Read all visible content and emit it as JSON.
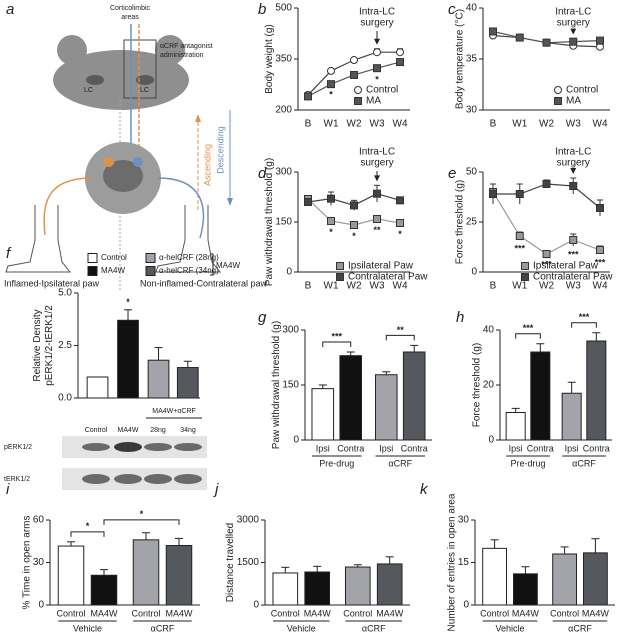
{
  "panel_a": {
    "letter": "a",
    "corticolimbic": [
      "Corticolimbic",
      "areas"
    ],
    "antagonist": [
      "αCRF antagonist",
      "administration"
    ],
    "lc_left": "LC",
    "lc_right": "LC",
    "ascending": "Ascending",
    "descending": "Descending",
    "ipsi_paw": "Inflamed-Ipsilateral paw",
    "contra_paw": "Non-inflamed-Contralateral paw"
  },
  "panel_f_blot": {
    "group_label": "MA4W+αCRF",
    "lane_labels": [
      "Control",
      "MA4W",
      "28ng",
      "34ng"
    ],
    "rows": [
      "pERK1/2",
      "tERK1/2"
    ]
  },
  "chart_data": [
    {
      "type": "line",
      "letter": "b",
      "ylabel": "Body weight (g)",
      "categories": [
        "B",
        "W1",
        "W2",
        "W3",
        "W4"
      ],
      "ylim": [
        200,
        500
      ],
      "yticks": [
        200,
        350,
        500
      ],
      "annotation": [
        "Intra-LC",
        "surgery"
      ],
      "legend": "lower right",
      "series": [
        {
          "name": "Control",
          "color": "#ffffff",
          "marker": "circle",
          "values": [
            244,
            315,
            347,
            370,
            370
          ],
          "errors": [
            8,
            6,
            6,
            10,
            10
          ]
        },
        {
          "name": "MA",
          "color": "#555555",
          "marker": "square",
          "values": [
            240,
            276,
            303,
            323,
            341
          ],
          "errors": [
            8,
            6,
            6,
            8,
            6
          ],
          "annotations": [
            null,
            "*",
            null,
            "*",
            null
          ]
        }
      ]
    },
    {
      "type": "line",
      "letter": "c",
      "ylabel": "Body temperature (°C)",
      "categories": [
        "B",
        "W1",
        "W2",
        "W3",
        "W4"
      ],
      "ylim": [
        30,
        40
      ],
      "yticks": [
        30,
        35,
        40
      ],
      "annotation": [
        "Intra-LC",
        "surgery"
      ],
      "legend": "lower right",
      "series": [
        {
          "name": "Control",
          "color": "#ffffff",
          "marker": "circle",
          "values": [
            37.3,
            37.1,
            36.6,
            36.3,
            36.2
          ],
          "errors": [
            0.2,
            0.2,
            0.2,
            0.3,
            0.2
          ]
        },
        {
          "name": "MA",
          "color": "#555555",
          "marker": "square",
          "values": [
            37.7,
            37.1,
            36.6,
            36.7,
            36.8
          ],
          "errors": [
            0.2,
            0.2,
            0.2,
            0.3,
            0.3
          ]
        }
      ]
    },
    {
      "type": "line",
      "letter": "d",
      "ylabel": "Paw withdrawal threshold (g)",
      "categories": [
        "B",
        "W1",
        "W2",
        "W3",
        "W4"
      ],
      "ylim": [
        0,
        300
      ],
      "yticks": [
        0,
        150,
        300
      ],
      "annotation": [
        "Intra-LC",
        "surgery"
      ],
      "legend": "bottom",
      "series": [
        {
          "name": "Ipsilateral Paw",
          "color": "#999999",
          "marker": "square",
          "values": [
            219,
            153,
            141,
            159,
            147
          ],
          "errors": [
            10,
            8,
            8,
            8,
            8
          ],
          "annotations": [
            null,
            "*",
            "*",
            "**",
            "*"
          ]
        },
        {
          "name": "Contralateral Paw",
          "color": "#444444",
          "marker": "square",
          "values": [
            210,
            220,
            200,
            235,
            215
          ],
          "errors": [
            10,
            20,
            15,
            25,
            10
          ]
        }
      ]
    },
    {
      "type": "line",
      "letter": "e",
      "ylabel": "Force threshold (g)",
      "categories": [
        "B",
        "W1",
        "W2",
        "W3",
        "W4"
      ],
      "ylim": [
        0,
        50
      ],
      "yticks": [
        0,
        25,
        50
      ],
      "annotation": [
        "Intra-LC",
        "surgery"
      ],
      "legend": "bottom",
      "series": [
        {
          "name": "Ipsilateral Paw",
          "color": "#999999",
          "marker": "square",
          "values": [
            40,
            18,
            9,
            16,
            11
          ],
          "errors": [
            4,
            2,
            1,
            3,
            2
          ],
          "annotations": [
            null,
            "***",
            "***",
            "***",
            "***"
          ]
        },
        {
          "name": "Contralateral Paw",
          "color": "#444444",
          "marker": "square",
          "values": [
            39,
            39,
            44,
            43,
            32
          ],
          "errors": [
            5,
            5,
            2,
            4,
            4
          ]
        }
      ]
    },
    {
      "type": "bar",
      "letter": "f",
      "ylabel": [
        "Relative Density",
        "pERK1/2-tERK1/2"
      ],
      "ylim": [
        0,
        5
      ],
      "yticks": [
        {
          "value": 0,
          "label": "0.0"
        },
        {
          "value": 2.5,
          "label": "2.5"
        },
        {
          "value": 5,
          "label": "5.0"
        }
      ],
      "legend": "top",
      "categories": [
        "Control",
        "MA4W",
        "α-helCRF (28ng)",
        "α-helCRF (34ng)"
      ],
      "legend_group": "MA4W",
      "colors": [
        "#ffffff",
        "#111111",
        "#a3a3aa",
        "#55595e"
      ],
      "values": [
        1,
        3.7,
        1.8,
        1.45
      ],
      "errors": [
        null,
        0.5,
        0.6,
        0.3
      ],
      "annotations": [
        null,
        "*",
        null,
        null
      ]
    },
    {
      "type": "bar",
      "letter": "g",
      "ylabel": "Paw withdrawal threshold (g)",
      "ylim": [
        0,
        300
      ],
      "yticks": [
        0,
        150,
        300
      ],
      "categories": [
        "Ipsi",
        "Contra",
        "Ipsi",
        "Contra"
      ],
      "groups": [
        "Pre-drug",
        "αCRF"
      ],
      "colors": [
        "#ffffff",
        "#111111",
        "#a3a3aa",
        "#55595e"
      ],
      "values": [
        140,
        230,
        178,
        240
      ],
      "errors": [
        10,
        10,
        8,
        18
      ],
      "significance": [
        "***",
        "**"
      ]
    },
    {
      "type": "bar",
      "letter": "h",
      "ylabel": "Force threshold (g)",
      "ylim": [
        0,
        40
      ],
      "yticks": [
        0,
        20,
        40
      ],
      "categories": [
        "Ipsi",
        "Contra",
        "Ipsi",
        "Contra"
      ],
      "groups": [
        "Pre-drug",
        "αCRF"
      ],
      "colors": [
        "#ffffff",
        "#111111",
        "#a3a3aa",
        "#55595e"
      ],
      "values": [
        10,
        32,
        17,
        36
      ],
      "errors": [
        1.5,
        3,
        4,
        3
      ],
      "significance": [
        "***",
        "***"
      ]
    },
    {
      "type": "bar",
      "letter": "i",
      "ylabel": "% Time in open arms",
      "ylim": [
        0,
        60
      ],
      "yticks": [
        0,
        30,
        60
      ],
      "categories": [
        "Control",
        "MA4W",
        "Control",
        "MA4W"
      ],
      "groups": [
        "Vehicle",
        "αCRF"
      ],
      "colors": [
        "#ffffff",
        "#111111",
        "#a3a3aa",
        "#55595e"
      ],
      "values": [
        41.6,
        21,
        46,
        42
      ],
      "errors": [
        3,
        4,
        5,
        5
      ],
      "significance": [
        "*",
        "*"
      ]
    },
    {
      "type": "bar",
      "letter": "j",
      "ylabel": "Distance travelled",
      "ylim": [
        0,
        3000
      ],
      "yticks": [
        0,
        1500,
        3000
      ],
      "categories": [
        "Control",
        "MA4W",
        "Control",
        "MA4W"
      ],
      "groups": [
        "Vehicle",
        "αCRF"
      ],
      "colors": [
        "#ffffff",
        "#111111",
        "#a3a3aa",
        "#55595e"
      ],
      "values": [
        1130,
        1165,
        1340,
        1450
      ],
      "errors": [
        200,
        200,
        80,
        250
      ]
    },
    {
      "type": "bar",
      "letter": "k",
      "ylabel": "Number of entries in open area",
      "ylim": [
        0,
        30
      ],
      "yticks": [
        0,
        15,
        30
      ],
      "categories": [
        "Control",
        "MA4W",
        "Control",
        "MA4W"
      ],
      "groups": [
        "Vehicle",
        "αCRF"
      ],
      "colors": [
        "#ffffff",
        "#111111",
        "#a3a3aa",
        "#55595e"
      ],
      "values": [
        20,
        11,
        18,
        18.4
      ],
      "errors": [
        3,
        2.5,
        2.5,
        5
      ]
    }
  ]
}
